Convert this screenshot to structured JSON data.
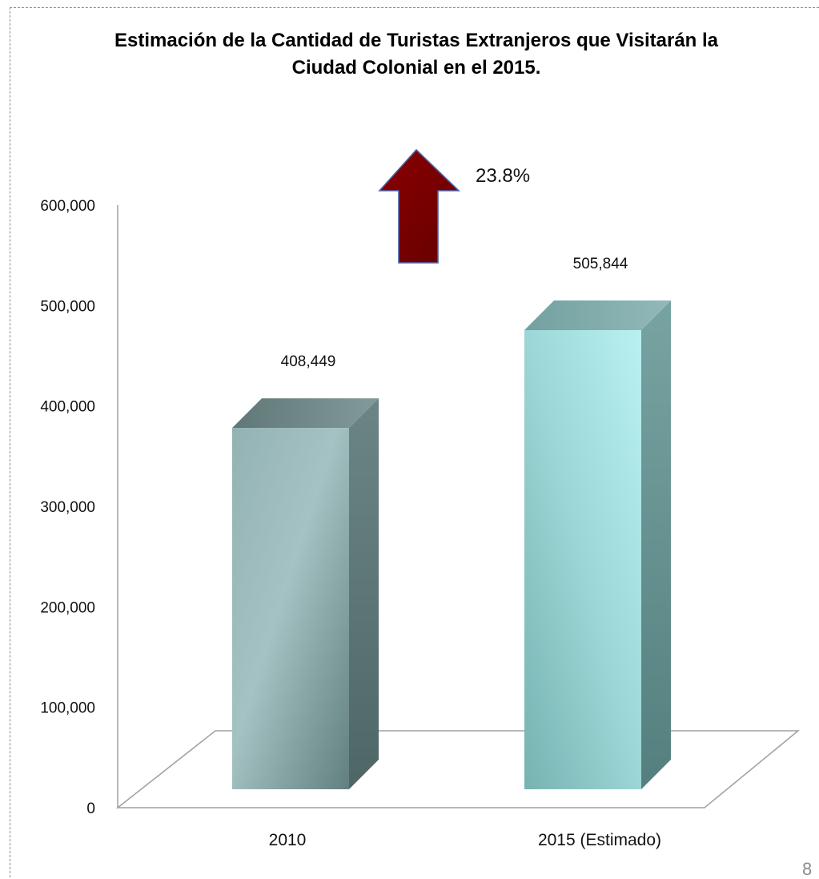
{
  "chart_data": {
    "type": "bar",
    "title": "Estimación de la Cantidad de Turistas Extranjeros que Visitarán la Ciudad Colonial en el 2015.",
    "categories": [
      "2010",
      "2015 (Estimado)"
    ],
    "values": [
      408449,
      505844
    ],
    "data_labels": [
      "408,449",
      "505,844"
    ],
    "ylim": [
      0,
      600000
    ],
    "yticks": [
      0,
      100000,
      200000,
      300000,
      400000,
      500000,
      600000
    ],
    "ytick_labels": [
      "0",
      "100,000",
      "200,000",
      "300,000",
      "400,000",
      "500,000",
      "600,000"
    ],
    "xlabel": "",
    "ylabel": "",
    "grid": false,
    "legend": "none",
    "three_d": true,
    "annotation": {
      "text": "23.8%",
      "icon": "up-arrow-icon",
      "color": "#7a0000"
    },
    "colors": {
      "bar_2010": "#7fa3a4",
      "bar_2015": "#9fdcdc",
      "arrow": "#7a0000",
      "axis": "#a0a0a0"
    }
  },
  "page_number": "8"
}
